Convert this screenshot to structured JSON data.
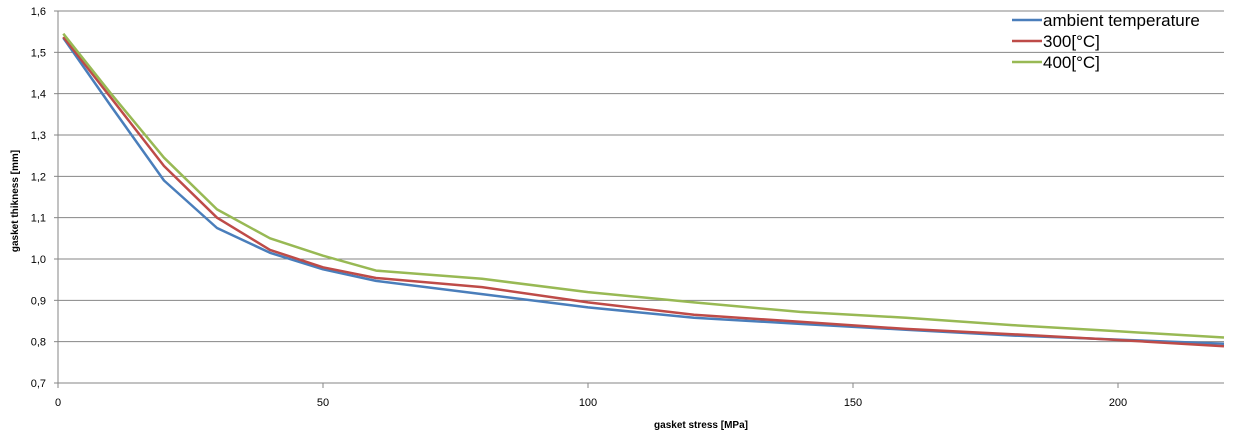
{
  "chart_data": {
    "type": "line",
    "title": "",
    "xlabel": "gasket stress [MPa]",
    "ylabel": "gasket thikness [mm]",
    "xlim": [
      0,
      220
    ],
    "ylim": [
      0.7,
      1.6
    ],
    "x_ticks": [
      0,
      50,
      100,
      150,
      200
    ],
    "x_tick_labels": [
      "0",
      "50",
      "100",
      "150",
      "200"
    ],
    "y_ticks": [
      0.7,
      0.8,
      0.9,
      1.0,
      1.1,
      1.2,
      1.3,
      1.4,
      1.5,
      1.6
    ],
    "y_tick_labels": [
      "0,7",
      "0,8",
      "0,9",
      "1,0",
      "1,1",
      "1,2",
      "1,3",
      "1,4",
      "1,5",
      "1,6"
    ],
    "grid": "horizontal",
    "legend_position": "top-right",
    "x": [
      1,
      10,
      20,
      30,
      40,
      50,
      60,
      80,
      100,
      120,
      140,
      160,
      180,
      200,
      220
    ],
    "series": [
      {
        "name": "ambient temperature",
        "color": "#4a7ebb",
        "values": [
          1.535,
          1.37,
          1.19,
          1.075,
          1.015,
          0.975,
          0.947,
          0.915,
          0.883,
          0.858,
          0.843,
          0.829,
          0.815,
          0.805,
          0.795
        ]
      },
      {
        "name": "300[°C]",
        "color": "#be4b48",
        "values": [
          1.537,
          1.39,
          1.225,
          1.1,
          1.022,
          0.98,
          0.954,
          0.932,
          0.895,
          0.865,
          0.848,
          0.831,
          0.818,
          0.804,
          0.789
        ]
      },
      {
        "name": "400[°C]",
        "color": "#98b954",
        "values": [
          1.545,
          1.4,
          1.245,
          1.12,
          1.05,
          1.008,
          0.972,
          0.952,
          0.92,
          0.895,
          0.872,
          0.858,
          0.84,
          0.825,
          0.81
        ]
      }
    ]
  }
}
